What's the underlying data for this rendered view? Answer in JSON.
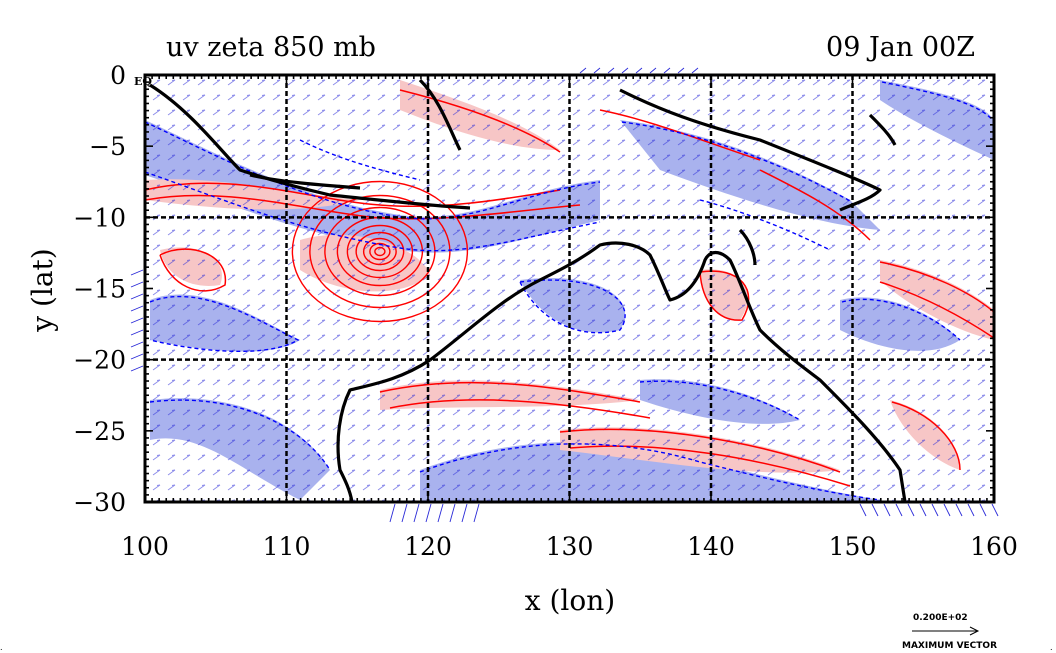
{
  "chart_data": {
    "type": "contour",
    "title": "uv zeta 850 mb",
    "subtitle": "09 Jan 00Z",
    "xlabel": "x (lon)",
    "ylabel": "y (lat)",
    "xlim": [
      100,
      160
    ],
    "ylim": [
      -30,
      0
    ],
    "x_ticks": [
      100,
      110,
      120,
      130,
      140,
      150,
      160
    ],
    "x_tick_labels": [
      "100",
      "110",
      "120",
      "130",
      "140",
      "150",
      "160"
    ],
    "y_ticks": [
      0,
      -5,
      -10,
      -15,
      -20,
      -25,
      -30
    ],
    "y_tick_labels": [
      "0",
      "−5",
      "−10",
      "−15",
      "−20",
      "−25",
      "−30"
    ],
    "y_tick_extra": "EQ",
    "grid": true,
    "grid_lines_x": [
      110,
      120,
      130,
      140,
      150
    ],
    "grid_lines_y": [
      -10,
      -20
    ],
    "vector_key": {
      "value_label": "0.200E+02",
      "caption": "MAXIMUM VECTOR"
    },
    "colors": {
      "positive_contour": "#ff0000",
      "positive_fill": "#f7c6c6",
      "negative_contour": "#0000ff",
      "negative_fill": "#a9b2ee",
      "coastline": "#000000",
      "vectors": "#2a2ad8"
    },
    "features": [
      {
        "type": "vortex",
        "sign": "positive",
        "lon": 116.6,
        "lat": -12.4
      }
    ]
  }
}
